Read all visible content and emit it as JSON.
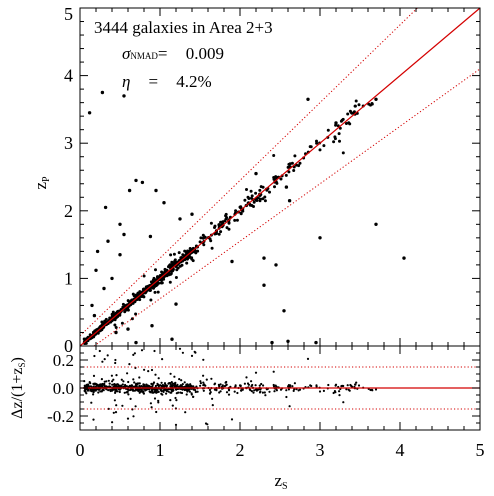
{
  "chart_data": [
    {
      "type": "scatter",
      "panel": "top",
      "xlim": [
        0,
        5
      ],
      "ylim": [
        0,
        5
      ],
      "ylabel": "z_P",
      "yticks": [
        "0",
        "1",
        "2",
        "3",
        "4",
        "5"
      ],
      "annotation": {
        "line1": "3444  galaxies in Area 2+3",
        "sigma_symbol": "σ",
        "sigma_sub": "NMAD",
        "sigma_eq": "=",
        "sigma_value": "0.009",
        "eta_symbol": "η",
        "eta_eq": "=",
        "eta_value": "4.2%"
      },
      "lines": [
        {
          "role": "one-to-one",
          "color": "#d40000",
          "style": "solid",
          "slope": 1,
          "offset": 0
        },
        {
          "role": "upper-bound",
          "color": "#d40000",
          "style": "dotted",
          "relation": "z_P = z_S + 0.15(1+z_S)"
        },
        {
          "role": "lower-bound",
          "color": "#d40000",
          "style": "dotted",
          "relation": "z_P = z_S - 0.15(1+z_S)"
        }
      ],
      "outliers": [
        [
          0.12,
          3.45
        ],
        [
          0.28,
          3.75
        ],
        [
          0.55,
          3.7
        ],
        [
          0.32,
          2.05
        ],
        [
          0.62,
          2.3
        ],
        [
          0.7,
          2.45
        ],
        [
          0.78,
          2.42
        ],
        [
          0.95,
          2.3
        ],
        [
          1.05,
          2.12
        ],
        [
          0.22,
          1.4
        ],
        [
          0.35,
          1.55
        ],
        [
          0.2,
          1.12
        ],
        [
          0.5,
          1.8
        ],
        [
          0.55,
          1.65
        ],
        [
          0.88,
          1.62
        ],
        [
          1.25,
          1.88
        ],
        [
          1.4,
          1.95
        ],
        [
          2.4,
          0.05
        ],
        [
          2.6,
          0.07
        ],
        [
          2.95,
          0.05
        ],
        [
          2.3,
          0.9
        ],
        [
          2.45,
          1.2
        ],
        [
          2.3,
          1.3
        ],
        [
          3.7,
          1.8
        ],
        [
          4.05,
          1.3
        ],
        [
          2.85,
          3.65
        ],
        [
          3.7,
          3.65
        ],
        [
          2.55,
          0.52
        ],
        [
          1.9,
          1.25
        ],
        [
          3.0,
          1.6
        ],
        [
          0.45,
          0.2
        ],
        [
          0.6,
          0.25
        ],
        [
          0.7,
          0.05
        ],
        [
          1.15,
          0.1
        ],
        [
          0.9,
          0.3
        ],
        [
          0.4,
          1.0
        ],
        [
          0.3,
          0.85
        ],
        [
          0.15,
          0.6
        ],
        [
          0.18,
          0.45
        ],
        [
          1.2,
          0.62
        ],
        [
          2.2,
          2.55
        ],
        [
          3.2,
          3.3
        ],
        [
          2.58,
          2.35
        ],
        [
          2.62,
          2.15
        ],
        [
          0.5,
          1.35
        ]
      ],
      "core_sampling_note": "main locus z_P ≈ z_S, dense from z_S 0 to 1.4, sparse to z_S 3.7"
    },
    {
      "type": "scatter",
      "panel": "bottom",
      "xlim": [
        0,
        5
      ],
      "ylim": [
        -0.3,
        0.3
      ],
      "xlabel": "z_S",
      "ylabel": "Δz/(1+z_S)",
      "xticks": [
        "0",
        "1",
        "2",
        "3",
        "4",
        "5"
      ],
      "yticks": [
        "-0.2",
        "0.0",
        "0.2"
      ],
      "lines": [
        {
          "role": "zero",
          "color": "#d40000",
          "style": "solid",
          "y": 0.0
        },
        {
          "role": "upper",
          "color": "#d40000",
          "style": "dotted",
          "y": 0.15
        },
        {
          "role": "lower",
          "color": "#d40000",
          "style": "dotted",
          "y": -0.15
        }
      ]
    }
  ]
}
